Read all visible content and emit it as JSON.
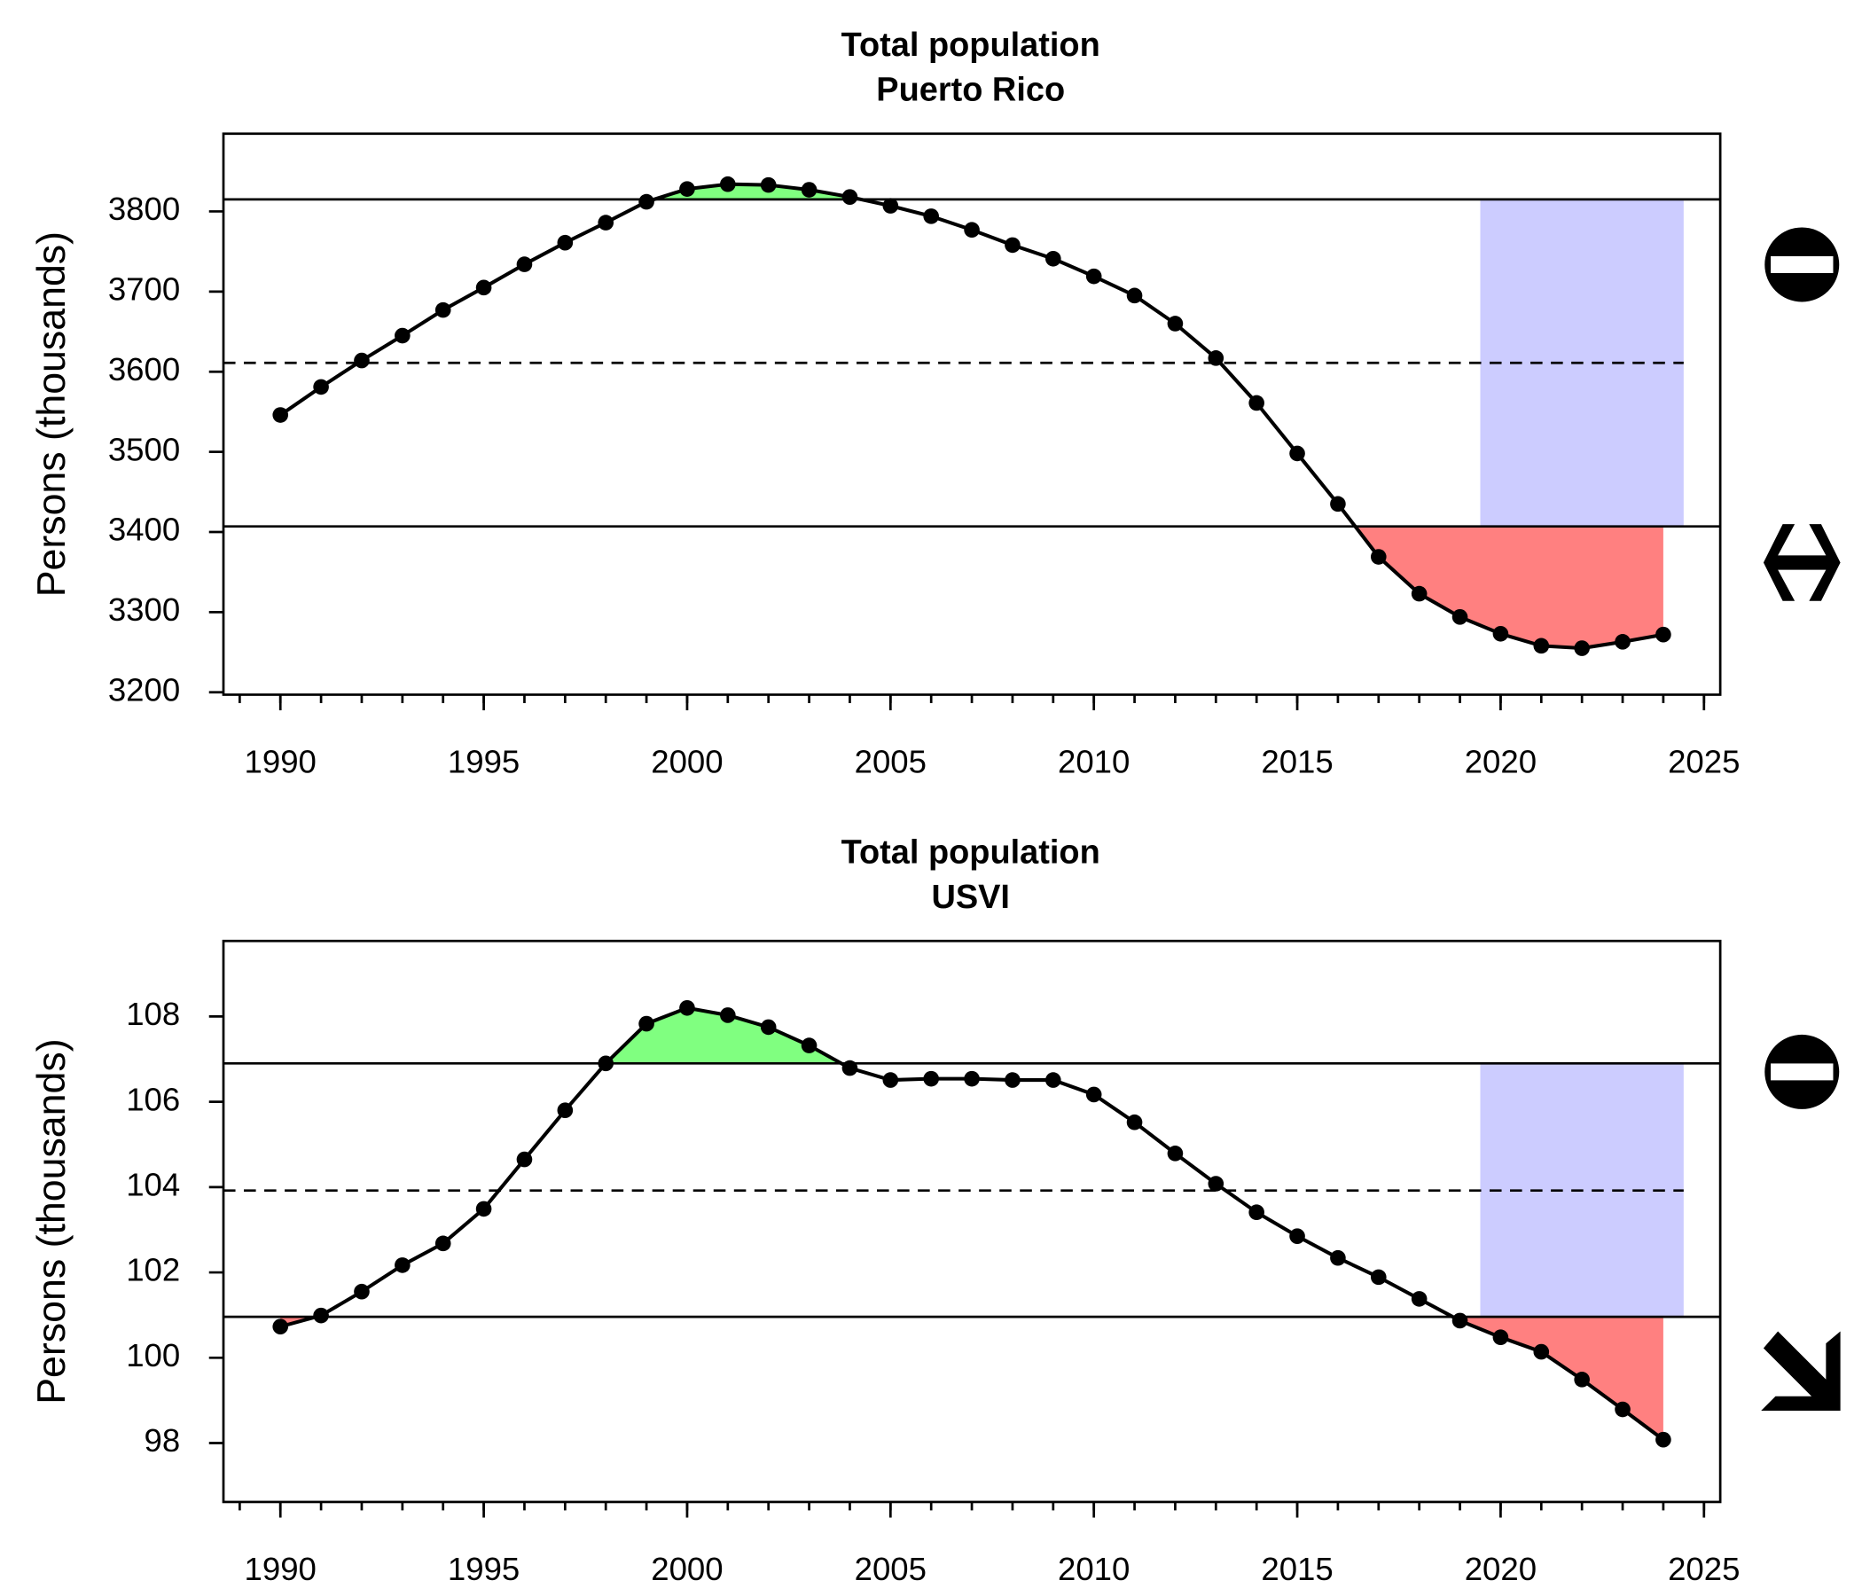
{
  "chart_data": [
    {
      "type": "line",
      "title": "Total population",
      "subtitle": "Puerto Rico",
      "ylabel": "Persons (thousands)",
      "x": [
        1990,
        1991,
        1992,
        1993,
        1994,
        1995,
        1996,
        1997,
        1998,
        1999,
        2000,
        2001,
        2002,
        2003,
        2004,
        2005,
        2006,
        2007,
        2008,
        2009,
        2010,
        2011,
        2012,
        2013,
        2014,
        2015,
        2016,
        2017,
        2018,
        2019,
        2020,
        2021,
        2022,
        2023,
        2024
      ],
      "values": [
        3546,
        3581,
        3614,
        3645,
        3677,
        3705,
        3734,
        3761,
        3786,
        3812,
        3828,
        3834,
        3833,
        3827,
        3818,
        3807,
        3794,
        3777,
        3758,
        3741,
        3719,
        3695,
        3660,
        3617,
        3561,
        3498,
        3435,
        3369,
        3323,
        3294,
        3273,
        3258,
        3255,
        3263,
        3272
      ],
      "color": "#000000",
      "hlines": [
        3815,
        3611,
        3407
      ],
      "hline_styles": [
        "solid",
        "dashed",
        "solid"
      ],
      "above_color": "#80ff80",
      "below_color": "#ff8080",
      "highlight_x": [
        2019.5,
        2024.5
      ],
      "highlight_color": "#ccccff",
      "xlim": [
        1988.6,
        2025.4
      ],
      "xticks": [
        1990,
        1995,
        2000,
        2005,
        2010,
        2015,
        2020,
        2025
      ],
      "xminorticks": [
        1989,
        1990,
        1991,
        1992,
        1993,
        1994,
        1995,
        1996,
        1997,
        1998,
        1999,
        2000,
        2001,
        2002,
        2003,
        2004,
        2005,
        2006,
        2007,
        2008,
        2009,
        2010,
        2011,
        2012,
        2013,
        2014,
        2015,
        2016,
        2017,
        2018,
        2019,
        2020,
        2021,
        2022,
        2023,
        2024,
        2025
      ],
      "ylim": [
        3197,
        3897
      ],
      "yticks": [
        3200,
        3300,
        3400,
        3500,
        3600,
        3700,
        3800
      ]
    },
    {
      "type": "line",
      "title": "Total population",
      "subtitle": "USVI",
      "ylabel": "Persons (thousands)",
      "x": [
        1990,
        1991,
        1992,
        1993,
        1994,
        1995,
        1996,
        1997,
        1998,
        1999,
        2000,
        2001,
        2002,
        2003,
        2004,
        2005,
        2006,
        2007,
        2008,
        2009,
        2010,
        2011,
        2012,
        2013,
        2014,
        2015,
        2016,
        2017,
        2018,
        2019,
        2020,
        2021,
        2022,
        2023,
        2024
      ],
      "values": [
        100.73,
        100.99,
        101.55,
        102.17,
        102.68,
        103.49,
        104.65,
        105.8,
        106.9,
        107.83,
        108.2,
        108.03,
        107.75,
        107.32,
        106.79,
        106.51,
        106.54,
        106.54,
        106.51,
        106.51,
        106.17,
        105.52,
        104.79,
        104.08,
        103.41,
        102.85,
        102.34,
        101.89,
        101.38,
        100.87,
        100.48,
        100.14,
        99.49,
        98.79,
        98.08
      ],
      "color": "#000000",
      "hlines": [
        106.9,
        103.92,
        100.96
      ],
      "hline_styles": [
        "solid",
        "dashed",
        "solid"
      ],
      "above_color": "#80ff80",
      "below_color": "#ff8080",
      "highlight_x": [
        2019.5,
        2024.5
      ],
      "highlight_color": "#ccccff",
      "xlim": [
        1988.6,
        2025.4
      ],
      "xticks": [
        1990,
        1995,
        2000,
        2005,
        2010,
        2015,
        2020,
        2025
      ],
      "xminorticks": [
        1989,
        1990,
        1991,
        1992,
        1993,
        1994,
        1995,
        1996,
        1997,
        1998,
        1999,
        2000,
        2001,
        2002,
        2003,
        2004,
        2005,
        2006,
        2007,
        2008,
        2009,
        2010,
        2011,
        2012,
        2013,
        2014,
        2015,
        2016,
        2017,
        2018,
        2019,
        2020,
        2021,
        2022,
        2023,
        2024,
        2025
      ],
      "ylim": [
        96.62,
        109.77
      ],
      "yticks": [
        98,
        100,
        102,
        104,
        106,
        108
      ]
    }
  ]
}
